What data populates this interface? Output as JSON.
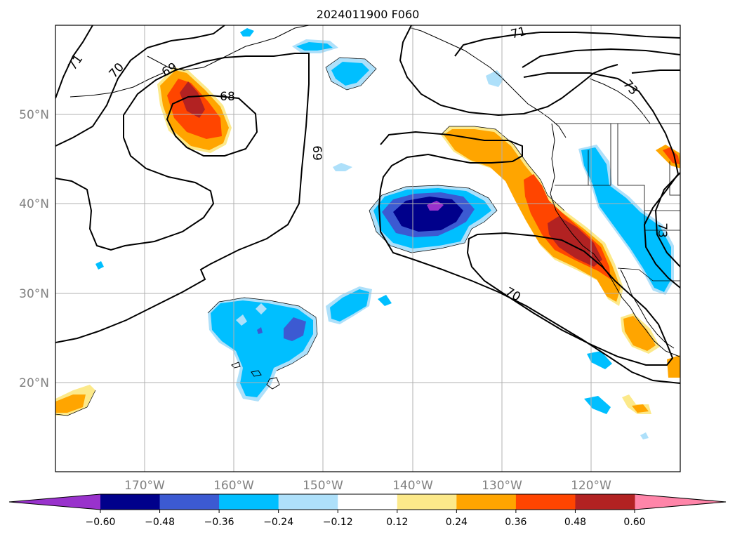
{
  "title": "2024011900 F060",
  "axes": {
    "lat_ticks": [
      "20°N",
      "30°N",
      "40°N",
      "50°N"
    ],
    "lon_ticks": [
      "170°W",
      "160°W",
      "150°W",
      "140°W",
      "130°W",
      "120°W"
    ],
    "extent": {
      "lon_min": -180,
      "lon_max": -110,
      "lat_min": 10,
      "lat_max": 60
    },
    "grid": true
  },
  "colorbar": {
    "orientation": "horizontal",
    "location": "bottom",
    "extend": "both",
    "tick_labels": [
      "−0.60",
      "−0.48",
      "−0.36",
      "−0.24",
      "−0.12",
      "0.12",
      "0.24",
      "0.36",
      "0.48",
      "0.60"
    ],
    "bounds": [
      -0.6,
      -0.48,
      -0.36,
      -0.24,
      -0.12,
      0.12,
      0.24,
      0.36,
      0.48,
      0.6
    ],
    "colors": [
      "#9932cc",
      "#00008b",
      "#3c5ad2",
      "#00bfff",
      "#aee0fa",
      "#ffffff",
      "#fce98a",
      "#ffa500",
      "#ff4500",
      "#b22222",
      "#ff85a9"
    ]
  },
  "contour_labels": [
    "71",
    "70",
    "69",
    "68",
    "69",
    "71",
    "73",
    "73",
    "70"
  ],
  "colors": {
    "contour": "#000000",
    "coast": "#000000",
    "grid": "#b0b0b0",
    "tick_text": "#808080"
  }
}
